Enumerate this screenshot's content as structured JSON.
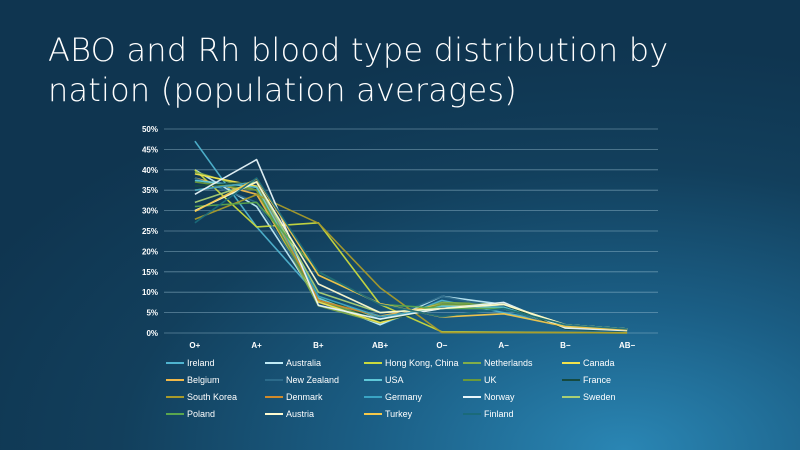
{
  "title": "ABO and Rh blood type distribution by nation (population averages)",
  "chart_data": {
    "type": "line",
    "categories": [
      "O+",
      "A+",
      "B+",
      "AB+",
      "O−",
      "A−",
      "B−",
      "AB−"
    ],
    "ylim": [
      0,
      50
    ],
    "yticks": [
      0,
      5,
      10,
      15,
      20,
      25,
      30,
      35,
      40,
      45,
      50
    ],
    "ytick_format": "%",
    "grid": true,
    "legend_position": "bottom",
    "series": [
      {
        "name": "Ireland",
        "color": "#4fb3cf",
        "values": [
          47,
          26,
          9,
          2,
          8,
          5,
          2,
          1
        ]
      },
      {
        "name": "Australia",
        "color": "#bfeaf5",
        "values": [
          40,
          31,
          8,
          2,
          9,
          7,
          2,
          1
        ]
      },
      {
        "name": "Hong Kong, China",
        "color": "#c9d93e",
        "values": [
          40,
          26,
          27,
          7,
          0.3,
          0.2,
          0.1,
          0.04
        ]
      },
      {
        "name": "Netherlands",
        "color": "#82ad4a",
        "values": [
          39.5,
          35,
          6.7,
          2.5,
          7.5,
          7,
          1.3,
          0.5
        ]
      },
      {
        "name": "Canada",
        "color": "#f2e24d",
        "values": [
          39,
          36,
          7.6,
          2.5,
          7,
          6,
          1.4,
          0.5
        ]
      },
      {
        "name": "Belgium",
        "color": "#f0b84a",
        "values": [
          38,
          34,
          8.5,
          4.1,
          7,
          6,
          1.5,
          0.8
        ]
      },
      {
        "name": "New Zealand",
        "color": "#2b6a8a",
        "values": [
          38,
          32,
          9,
          3,
          9,
          6,
          1,
          1
        ]
      },
      {
        "name": "USA",
        "color": "#5fc8d8",
        "values": [
          37.4,
          35.7,
          8.5,
          3.4,
          6.6,
          6.3,
          1.5,
          0.6
        ]
      },
      {
        "name": "UK",
        "color": "#6b9a3a",
        "values": [
          37,
          35,
          8,
          3,
          7,
          7,
          2,
          1
        ]
      },
      {
        "name": "France",
        "color": "#154a40",
        "values": [
          36,
          37,
          9,
          3,
          6,
          7,
          1,
          0.5
        ]
      },
      {
        "name": "South Korea",
        "color": "#a89a2a",
        "values": [
          27.9,
          33.9,
          26.9,
          11.1,
          0.1,
          0.1,
          0.1,
          0.03
        ]
      },
      {
        "name": "Denmark",
        "color": "#d08a2a",
        "values": [
          35,
          37,
          8,
          4,
          6,
          7,
          2,
          1
        ]
      },
      {
        "name": "Germany",
        "color": "#3aa4c4",
        "values": [
          35,
          37,
          9,
          4,
          6,
          6,
          2,
          1
        ]
      },
      {
        "name": "Norway",
        "color": "#e8f6fb",
        "values": [
          34,
          42.5,
          6.8,
          3.4,
          6,
          7.5,
          1.2,
          0.6
        ]
      },
      {
        "name": "Sweden",
        "color": "#a9cf74",
        "values": [
          32,
          37,
          10,
          5,
          6,
          7,
          2,
          1
        ]
      },
      {
        "name": "Poland",
        "color": "#5aa64e",
        "values": [
          31,
          32,
          15,
          7,
          6,
          6,
          2,
          1
        ]
      },
      {
        "name": "Austria",
        "color": "#fffbd0",
        "values": [
          30,
          37,
          12,
          5,
          6,
          7,
          2,
          1
        ]
      },
      {
        "name": "Turkey",
        "color": "#f5c84a",
        "values": [
          29.8,
          37.8,
          14.2,
          7.2,
          3.9,
          4.7,
          1.6,
          0.8
        ]
      },
      {
        "name": "Finland",
        "color": "#1a6a7a",
        "values": [
          27,
          38,
          15,
          7,
          4,
          6,
          2,
          1
        ]
      }
    ]
  }
}
